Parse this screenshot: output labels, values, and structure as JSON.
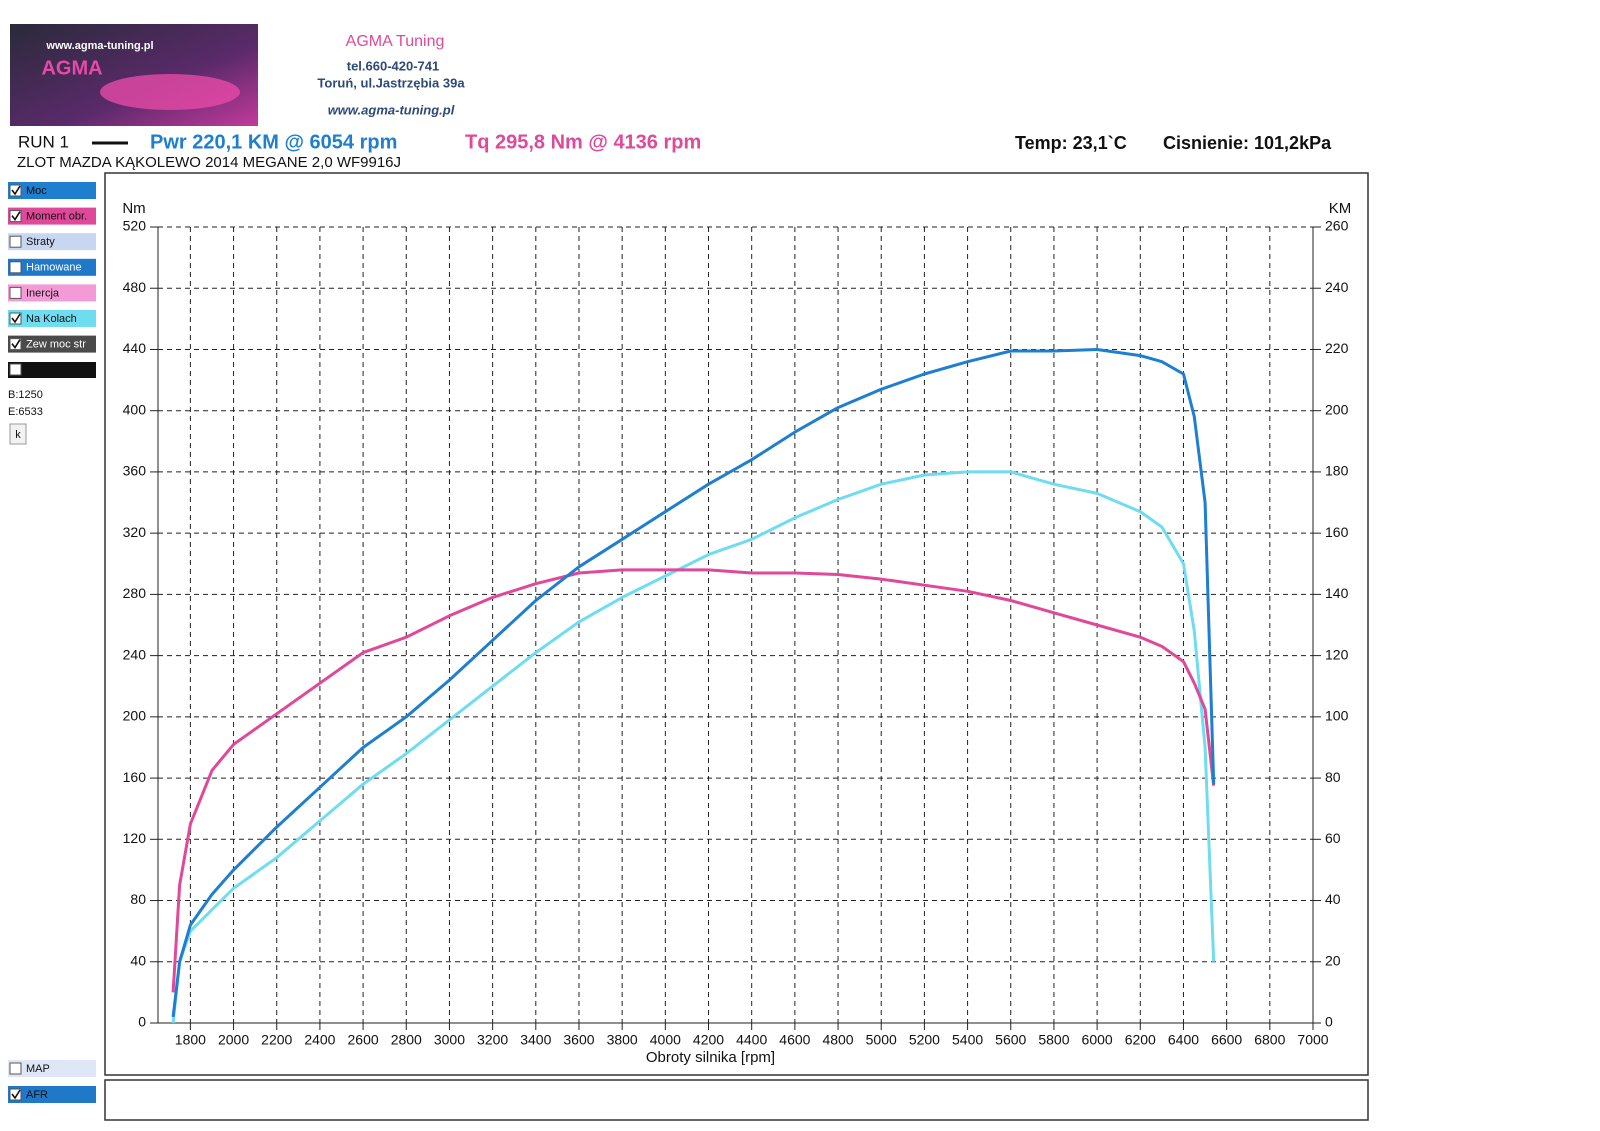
{
  "header": {
    "logo_url": "www.agma-tuning.pl",
    "logo_name": "AGMA",
    "company": "AGMA Tuning",
    "phone": "tel.660-420-741",
    "address": "Toruń, ul.Jastrzębia 39a",
    "website": "www.agma-tuning.pl"
  },
  "run": {
    "label": "RUN 1",
    "power": "Pwr  220,1 KM @ 6054 rpm",
    "torque": "Tq 295,8 Nm @ 4136 rpm",
    "temp": "Temp: 23,1`C",
    "pressure": "Cisnienie: 101,2kPa",
    "description": "ZLOT MAZDA KĄKOLEWO 2014 MEGANE 2,0 WF9916J"
  },
  "sidebar": {
    "items": [
      {
        "label": "Straty",
        "color": "#c9d6f2",
        "checked": false
      },
      {
        "label": "Hamowane",
        "color": "#1f78c8",
        "checked": false
      },
      {
        "label": "Inercja",
        "color": "#f49ad6",
        "checked": false
      },
      {
        "label": "Zew moc str",
        "color": "#4a4a4a",
        "checked": true
      }
    ],
    "begin": "B:1250",
    "end": "E:6533",
    "button": "k",
    "bottom": [
      {
        "label": "MAP",
        "color": "#dfe6f5",
        "checked": false
      },
      {
        "label": "AFR",
        "color": "#1f78c8",
        "checked": true
      }
    ]
  },
  "chart_data": {
    "type": "line",
    "y_label": "Nm",
    "y2_label": "KM",
    "x_label": "Obroty silnika [rpm]",
    "x": [
      1720,
      1750,
      1800,
      1900,
      2000,
      2200,
      2400,
      2600,
      2800,
      3000,
      3200,
      3400,
      3600,
      3800,
      4000,
      4200,
      4400,
      4600,
      4800,
      5000,
      5200,
      5400,
      5600,
      5800,
      6000,
      6200,
      6300,
      6400,
      6450,
      6500,
      6540
    ],
    "series": [
      {
        "name": "Moc",
        "color": "#1e7fd0",
        "axis": "y2",
        "checked": true,
        "values": [
          2,
          20,
          32,
          42,
          50,
          64,
          77,
          90,
          100,
          112,
          125,
          138,
          149,
          158,
          167,
          176,
          184,
          193,
          201,
          207,
          212,
          216,
          219.5,
          219.5,
          220,
          218,
          216,
          212,
          198,
          170,
          78
        ]
      },
      {
        "name": "Moment obr.",
        "color": "#e0489a",
        "checked": true,
        "values": [
          20,
          90,
          130,
          165,
          182,
          202,
          222,
          242,
          252,
          266,
          278,
          287,
          294,
          296,
          296,
          296,
          294,
          294,
          293,
          290,
          286,
          282,
          276,
          268,
          260,
          252,
          246,
          236,
          222,
          205,
          155
        ]
      },
      {
        "name": "Na Kolach",
        "color": "#6fdcf0",
        "axis": "y2",
        "checked": true,
        "values": [
          0,
          20,
          30,
          37,
          44,
          54,
          66,
          78,
          88,
          99,
          110,
          121,
          131,
          139,
          146,
          153,
          158,
          165,
          171,
          176,
          179,
          180,
          180,
          176,
          173,
          167,
          162,
          150,
          128,
          90,
          20
        ]
      }
    ],
    "xlim": [
      1650,
      7000
    ],
    "xticks": [
      1800,
      2000,
      2200,
      2400,
      2600,
      2800,
      3000,
      3200,
      3400,
      3600,
      3800,
      4000,
      4200,
      4400,
      4600,
      4800,
      5000,
      5200,
      5400,
      5600,
      5800,
      6000,
      6200,
      6400,
      6600,
      6800,
      7000
    ],
    "ylim": [
      0,
      520
    ],
    "yticks": [
      0,
      40,
      80,
      120,
      160,
      200,
      240,
      280,
      320,
      360,
      400,
      440,
      480,
      520
    ],
    "y2lim": [
      0,
      260
    ],
    "y2ticks": [
      0,
      20,
      40,
      60,
      80,
      100,
      120,
      140,
      160,
      180,
      200,
      220,
      240,
      260
    ],
    "grid": true
  }
}
